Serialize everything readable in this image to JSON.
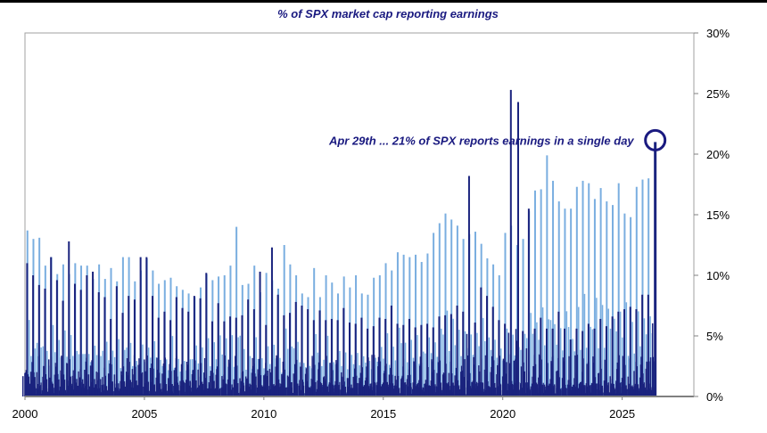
{
  "chart_data": {
    "type": "bar",
    "title": "% of SPX market cap reporting earnings",
    "xlabel": "",
    "ylabel": "",
    "xlim": [
      2000,
      2028
    ],
    "ylim": [
      0,
      30
    ],
    "y_axis_position": "right",
    "grid": false,
    "x_ticks": [
      "2000",
      "2005",
      "2010",
      "2015",
      "2020",
      "2025"
    ],
    "y_ticks": [
      "0%",
      "5%",
      "10%",
      "15%",
      "20%",
      "25%",
      "30%"
    ],
    "annotation": {
      "text": "Apr 29th ... 21% of SPX reports earnings in a single day",
      "date": "2026-04-29",
      "value": 21
    },
    "colors": {
      "light": "#7aaee0",
      "dark": "#1a237e",
      "annotation": "#1a1a80"
    },
    "series": [
      {
        "dates": [
          "2000-01-25",
          "2000-04-25",
          "2000-07-25",
          "2000-10-25",
          "2001-01-25",
          "2001-04-25",
          "2001-07-25",
          "2001-10-25",
          "2002-01-25",
          "2002-04-25",
          "2002-07-25",
          "2002-10-25",
          "2003-01-25",
          "2003-04-25",
          "2003-07-25",
          "2003-10-25",
          "2004-01-25",
          "2004-04-25",
          "2004-07-25",
          "2004-10-25",
          "2005-01-25",
          "2005-04-25",
          "2005-07-25",
          "2005-10-25",
          "2006-01-25",
          "2006-04-25",
          "2006-07-25",
          "2006-10-25",
          "2007-01-25",
          "2007-04-25",
          "2007-07-25",
          "2007-10-25",
          "2008-01-25",
          "2008-04-25",
          "2008-07-25",
          "2008-10-25",
          "2009-01-25",
          "2009-04-25",
          "2009-07-25",
          "2009-10-25",
          "2010-01-25",
          "2010-04-25",
          "2010-07-25",
          "2010-10-25",
          "2011-01-25",
          "2011-04-25",
          "2011-07-25",
          "2011-10-25",
          "2012-01-25",
          "2012-04-25",
          "2012-07-25",
          "2012-10-25",
          "2013-01-25",
          "2013-04-25",
          "2013-07-25",
          "2013-10-25",
          "2014-01-25",
          "2014-04-25",
          "2014-07-25",
          "2014-10-25",
          "2015-01-25",
          "2015-04-25",
          "2015-07-25",
          "2015-10-25",
          "2016-01-25",
          "2016-04-25",
          "2016-07-25",
          "2016-10-25",
          "2017-01-25",
          "2017-04-25",
          "2017-07-25",
          "2017-10-25",
          "2018-01-25",
          "2018-04-25",
          "2018-07-25",
          "2018-10-25",
          "2019-01-25",
          "2019-04-25",
          "2019-07-25",
          "2019-10-25",
          "2020-01-25",
          "2020-04-25",
          "2020-07-25",
          "2020-10-25",
          "2021-01-25",
          "2021-04-25",
          "2021-07-25",
          "2021-10-25",
          "2022-01-25",
          "2022-04-25",
          "2022-07-25",
          "2022-10-25",
          "2023-01-25",
          "2023-04-25",
          "2023-07-25",
          "2023-10-25",
          "2024-01-25",
          "2024-04-25",
          "2024-07-25",
          "2024-10-25",
          "2025-01-25",
          "2025-04-25",
          "2025-07-25",
          "2025-10-25",
          "2026-01-25"
        ],
        "light_peaks": [
          13.7,
          13.0,
          13.1,
          10.8,
          11.5,
          10.1,
          10.9,
          10.1,
          11.0,
          10.8,
          10.8,
          9.7,
          10.9,
          9.7,
          10.6,
          9.5,
          11.5,
          11.5,
          9.5,
          10.4,
          11.4,
          10.4,
          9.3,
          9.6,
          9.8,
          9.1,
          8.8,
          8.5,
          8.2,
          9.0,
          10.1,
          9.6,
          9.9,
          10.0,
          10.8,
          14.0,
          9.2,
          9.3,
          10.8,
          8.6,
          10.2,
          9.6,
          8.9,
          12.5,
          10.9,
          10.0,
          8.5,
          8.2,
          10.6,
          8.2,
          10.0,
          9.4,
          8.5,
          9.9,
          9.0,
          10.0,
          8.5,
          8.4,
          9.8,
          10.0,
          11.0,
          10.4,
          11.9,
          11.7,
          11.5,
          11.7,
          11.1,
          11.8,
          13.5,
          14.3,
          15.1,
          14.6,
          14.1,
          13.0,
          13.4,
          13.6,
          12.6,
          11.4,
          10.9,
          10.0,
          13.5,
          14.1,
          12.5,
          13.0,
          15.3,
          17.0,
          17.1,
          19.9,
          17.8,
          16.1,
          15.5,
          15.5,
          17.3,
          17.8,
          17.6,
          16.3,
          17.2,
          16.1,
          15.8,
          17.6,
          15.1,
          14.8,
          17.3,
          17.9,
          18.0
        ]
      },
      {
        "dates": [
          "2000-01-20",
          "2000-04-20",
          "2000-07-20",
          "2000-10-20",
          "2001-01-20",
          "2001-04-20",
          "2001-07-20",
          "2001-10-20",
          "2002-01-20",
          "2002-04-20",
          "2002-07-20",
          "2002-10-20",
          "2003-01-20",
          "2003-04-20",
          "2003-07-20",
          "2003-10-20",
          "2004-01-20",
          "2004-04-20",
          "2004-07-20",
          "2004-10-20",
          "2005-01-20",
          "2005-04-20",
          "2005-07-20",
          "2005-10-20",
          "2006-01-20",
          "2006-04-20",
          "2006-07-20",
          "2006-10-20",
          "2007-01-20",
          "2007-04-20",
          "2007-07-20",
          "2007-10-20",
          "2008-01-20",
          "2008-04-20",
          "2008-07-20",
          "2008-10-20",
          "2009-01-20",
          "2009-04-20",
          "2009-07-20",
          "2009-10-20",
          "2010-01-20",
          "2010-04-20",
          "2010-07-20",
          "2010-10-20",
          "2011-01-20",
          "2011-04-20",
          "2011-07-20",
          "2011-10-20",
          "2012-01-20",
          "2012-04-20",
          "2012-07-20",
          "2012-10-20",
          "2013-01-20",
          "2013-04-20",
          "2013-07-20",
          "2013-10-20",
          "2014-01-20",
          "2014-04-20",
          "2014-07-20",
          "2014-10-20",
          "2015-01-20",
          "2015-04-20",
          "2015-07-20",
          "2015-10-20",
          "2016-01-20",
          "2016-04-20",
          "2016-07-20",
          "2016-10-20",
          "2017-01-20",
          "2017-04-20",
          "2017-07-20",
          "2017-10-20",
          "2018-01-20",
          "2018-04-20",
          "2018-07-20",
          "2018-10-20",
          "2019-01-20",
          "2019-04-20",
          "2019-07-20",
          "2019-10-20",
          "2020-01-20",
          "2020-04-20",
          "2020-07-20",
          "2020-08-10",
          "2020-10-20",
          "2021-01-20",
          "2021-04-20",
          "2021-07-20",
          "2021-10-20",
          "2022-01-20",
          "2022-04-20",
          "2022-07-20",
          "2022-10-20",
          "2023-01-20",
          "2023-04-20",
          "2023-07-20",
          "2023-10-20",
          "2024-01-20",
          "2024-04-20",
          "2024-07-20",
          "2024-10-20",
          "2025-01-20",
          "2025-04-20",
          "2025-07-20",
          "2025-10-20",
          "2026-01-20",
          "2026-04-29"
        ],
        "dark_peaks": [
          11.0,
          10.0,
          9.2,
          8.9,
          11.5,
          9.6,
          7.9,
          12.8,
          9.3,
          8.8,
          10.0,
          10.3,
          8.6,
          8.2,
          6.4,
          9.1,
          6.9,
          8.3,
          8.0,
          11.5,
          11.5,
          8.3,
          6.5,
          7.0,
          6.3,
          8.2,
          7.3,
          7.0,
          8.3,
          8.1,
          10.2,
          6.2,
          7.7,
          6.2,
          6.6,
          6.5,
          6.7,
          8.0,
          7.2,
          10.3,
          5.9,
          12.3,
          8.4,
          6.7,
          6.9,
          7.8,
          7.5,
          7.2,
          6.3,
          7.1,
          6.3,
          6.4,
          6.3,
          7.3,
          6.1,
          6.0,
          6.5,
          5.6,
          5.8,
          6.5,
          6.4,
          7.5,
          6.0,
          5.9,
          6.4,
          5.7,
          5.9,
          6.0,
          5.7,
          6.6,
          6.7,
          6.8,
          7.5,
          7.0,
          18.2,
          6.1,
          9.0,
          8.3,
          7.4,
          6.3,
          6.0,
          25.3,
          4.6,
          24.3,
          5.4,
          15.5,
          5.6,
          6.5,
          5.6,
          5.6,
          7.0,
          5.6,
          4.7,
          5.6,
          5.4,
          6.0,
          5.6,
          6.4,
          5.8,
          6.6,
          7.0,
          7.2,
          7.4,
          7.2,
          8.4,
          8.4,
          21.0
        ]
      }
    ]
  }
}
